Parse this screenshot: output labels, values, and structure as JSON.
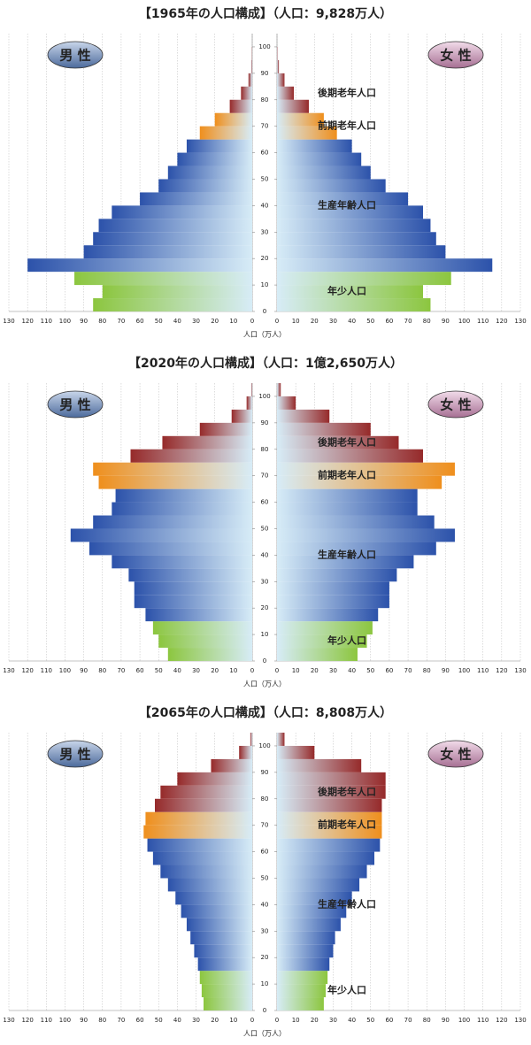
{
  "chart_data": [
    {
      "type": "pyramid",
      "title": "【1965年の人口構成】（人口：9,828万人）",
      "x_label": "人口（万人）",
      "y": [
        0,
        5,
        10,
        15,
        20,
        25,
        30,
        35,
        40,
        45,
        50,
        55,
        60,
        65,
        70,
        75,
        80,
        85,
        90,
        95,
        100
      ],
      "ylim": [
        0,
        105
      ],
      "yticks": [
        0,
        10,
        20,
        30,
        40,
        50,
        60,
        70,
        80,
        90,
        100
      ],
      "xlim": [
        0,
        130
      ],
      "xticks": [
        130,
        120,
        110,
        100,
        90,
        80,
        70,
        60,
        50,
        40,
        30,
        20,
        10,
        0
      ],
      "grid": true,
      "bands": [
        {
          "name": "年少人口",
          "from": 0,
          "to": 15,
          "color": "#8cc63f"
        },
        {
          "name": "生産年齢人口",
          "from": 15,
          "to": 65,
          "color": "#2c52aa"
        },
        {
          "name": "前期老年人口",
          "from": 65,
          "to": 75,
          "color": "#ef8f1d"
        },
        {
          "name": "後期老年人口",
          "from": 75,
          "to": 105,
          "color": "#962a2a"
        }
      ],
      "series": [
        {
          "name": "男 性",
          "values": [
            85,
            80,
            95,
            120,
            90,
            85,
            82,
            75,
            60,
            50,
            45,
            40,
            35,
            28,
            20,
            12,
            6,
            2,
            0.5,
            0.1,
            0
          ]
        },
        {
          "name": "女 性",
          "values": [
            82,
            78,
            93,
            115,
            90,
            85,
            82,
            78,
            70,
            58,
            50,
            45,
            40,
            32,
            25,
            17,
            9,
            4,
            1,
            0.3,
            0
          ]
        }
      ]
    },
    {
      "type": "pyramid",
      "title": "【2020年の人口構成】（人口：1億2,650万人）",
      "x_label": "人口（万人）",
      "y": [
        0,
        5,
        10,
        15,
        20,
        25,
        30,
        35,
        40,
        45,
        50,
        55,
        60,
        65,
        70,
        75,
        80,
        85,
        90,
        95,
        100
      ],
      "ylim": [
        0,
        105
      ],
      "yticks": [
        0,
        10,
        20,
        30,
        40,
        50,
        60,
        70,
        80,
        90,
        100
      ],
      "xlim": [
        0,
        130
      ],
      "xticks": [
        130,
        120,
        110,
        100,
        90,
        80,
        70,
        60,
        50,
        40,
        30,
        20,
        10,
        0
      ],
      "grid": true,
      "bands": [
        {
          "name": "年少人口",
          "from": 0,
          "to": 15,
          "color": "#8cc63f"
        },
        {
          "name": "生産年齢人口",
          "from": 15,
          "to": 65,
          "color": "#2c52aa"
        },
        {
          "name": "前期老年人口",
          "from": 65,
          "to": 75,
          "color": "#ef8f1d"
        },
        {
          "name": "後期老年人口",
          "from": 75,
          "to": 105,
          "color": "#962a2a"
        }
      ],
      "series": [
        {
          "name": "男 性",
          "values": [
            45,
            50,
            53,
            57,
            63,
            63,
            66,
            75,
            87,
            97,
            85,
            75,
            73,
            82,
            85,
            65,
            48,
            28,
            11,
            3,
            0.5
          ]
        },
        {
          "name": "女 性",
          "values": [
            43,
            48,
            51,
            54,
            60,
            60,
            64,
            73,
            85,
            95,
            84,
            75,
            75,
            88,
            95,
            78,
            65,
            50,
            28,
            10,
            2
          ]
        }
      ]
    },
    {
      "type": "pyramid",
      "title": "【2065年の人口構成】（人口：8,808万人）",
      "x_label": "人口（万人）",
      "y": [
        0,
        5,
        10,
        15,
        20,
        25,
        30,
        35,
        40,
        45,
        50,
        55,
        60,
        65,
        70,
        75,
        80,
        85,
        90,
        95,
        100
      ],
      "ylim": [
        0,
        105
      ],
      "yticks": [
        0,
        10,
        20,
        30,
        40,
        50,
        60,
        70,
        80,
        90,
        100
      ],
      "xlim": [
        0,
        130
      ],
      "xticks": [
        130,
        120,
        110,
        100,
        90,
        80,
        70,
        60,
        50,
        40,
        30,
        20,
        10,
        0
      ],
      "grid": true,
      "bands": [
        {
          "name": "年少人口",
          "from": 0,
          "to": 15,
          "color": "#8cc63f"
        },
        {
          "name": "生産年齢人口",
          "from": 15,
          "to": 65,
          "color": "#2c52aa"
        },
        {
          "name": "前期老年人口",
          "from": 65,
          "to": 75,
          "color": "#ef8f1d"
        },
        {
          "name": "後期老年人口",
          "from": 75,
          "to": 105,
          "color": "#962a2a"
        }
      ],
      "series": [
        {
          "name": "男 性",
          "values": [
            26,
            27,
            28,
            29,
            31,
            33,
            35,
            38,
            41,
            45,
            49,
            53,
            56,
            58,
            57,
            52,
            49,
            40,
            22,
            7,
            1
          ]
        },
        {
          "name": "女 性",
          "values": [
            25,
            26,
            27,
            28,
            30,
            31,
            34,
            37,
            40,
            44,
            48,
            52,
            55,
            56,
            56,
            56,
            58,
            58,
            45,
            20,
            4
          ]
        }
      ]
    }
  ]
}
